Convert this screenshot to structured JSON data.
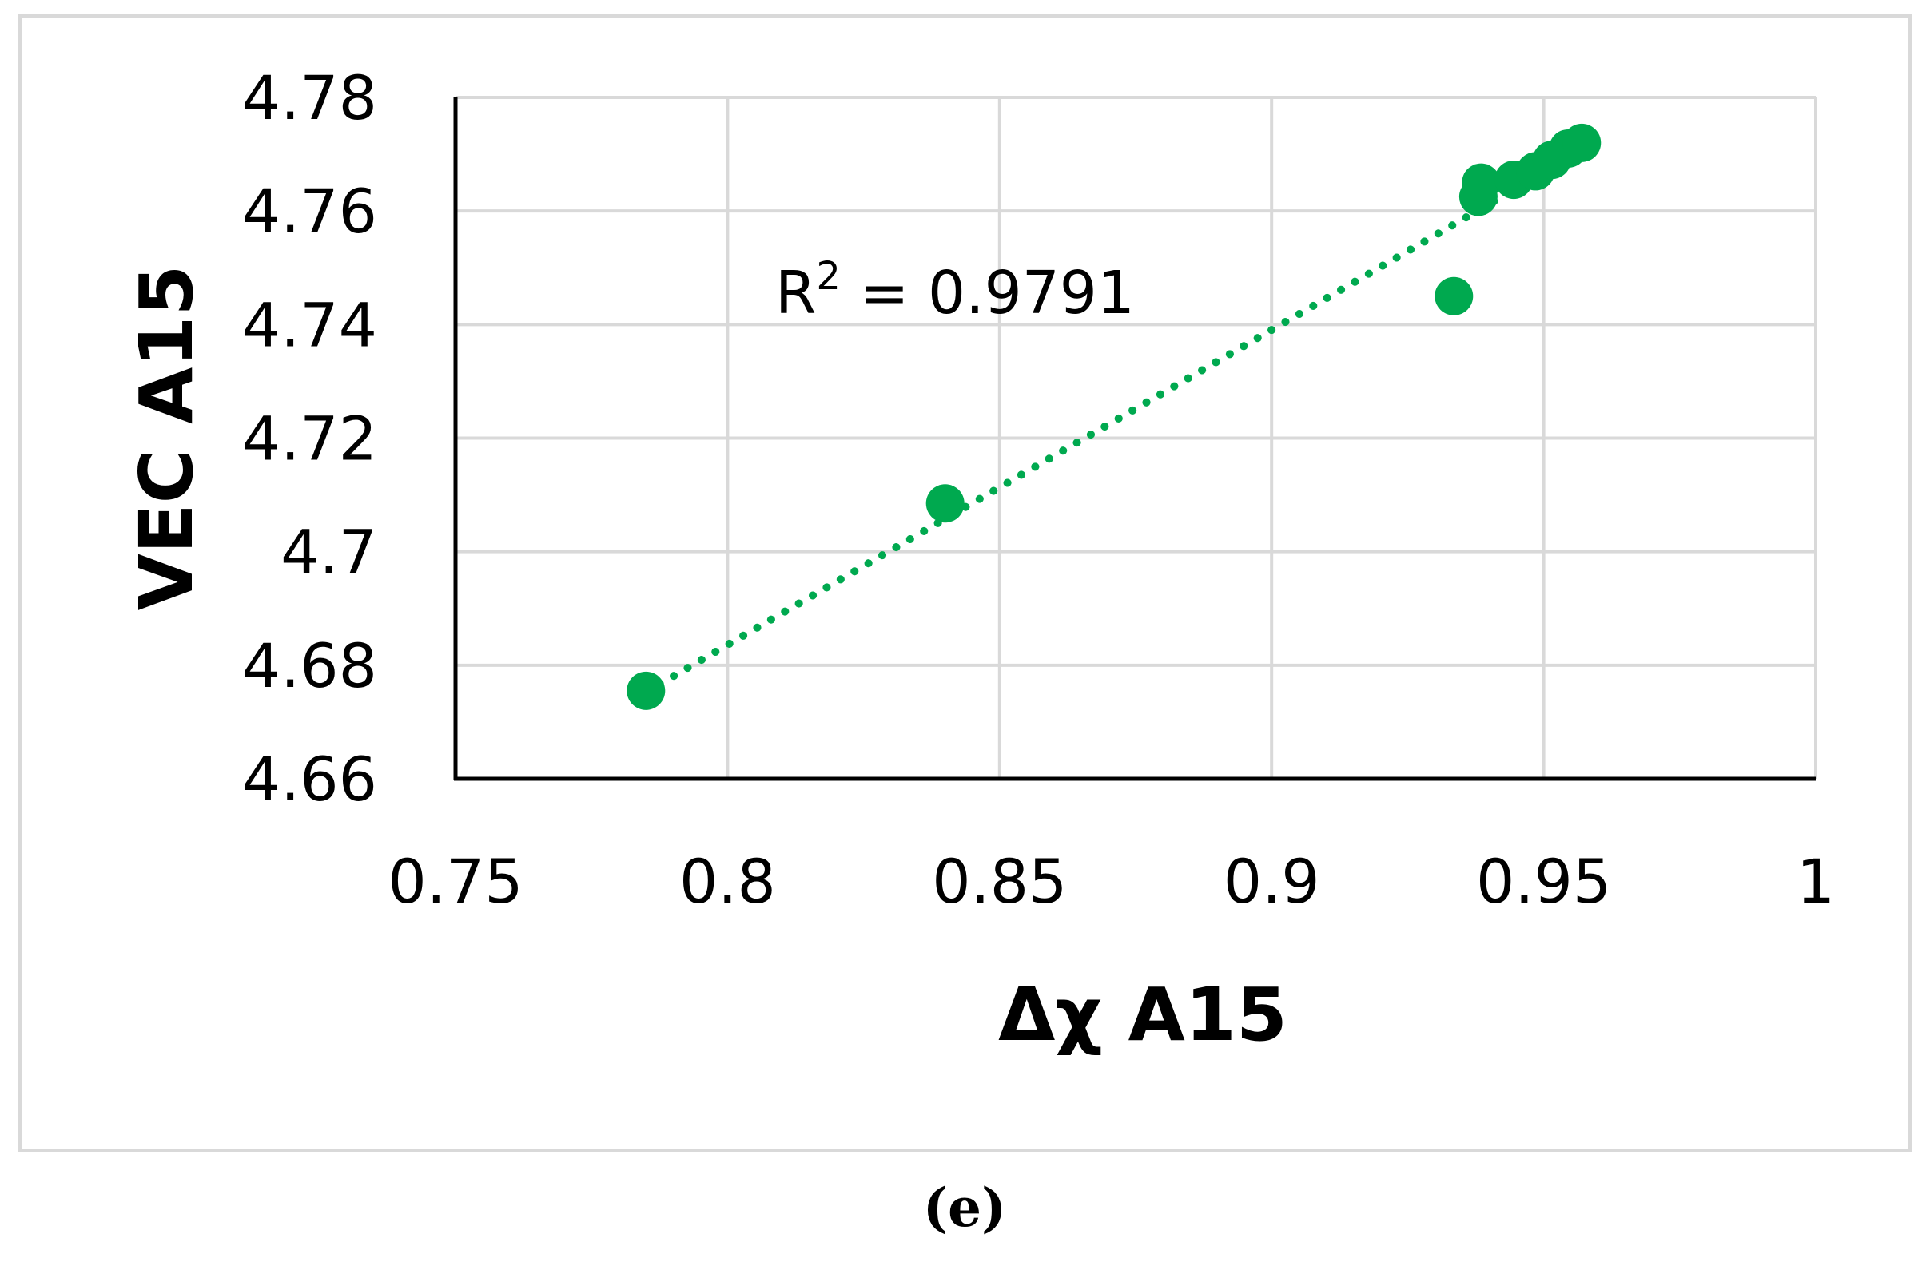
{
  "chart_data": {
    "type": "scatter",
    "xlabel": "Δχ A15",
    "ylabel": "VEC A15",
    "xlim": [
      0.75,
      1.0
    ],
    "ylim": [
      4.66,
      4.78
    ],
    "x_ticks": [
      0.75,
      0.8,
      0.85,
      0.9,
      0.95,
      1.0
    ],
    "x_tick_labels": [
      "0.75",
      "0.8",
      "0.85",
      "0.9",
      "0.95",
      "1"
    ],
    "y_ticks": [
      4.66,
      4.68,
      4.7,
      4.72,
      4.74,
      4.76,
      4.78
    ],
    "y_tick_labels": [
      "4.66",
      "4.68",
      "4.7",
      "4.72",
      "4.74",
      "4.76",
      "4.78"
    ],
    "grid": true,
    "color": "#00a94f",
    "series": [
      {
        "points": [
          {
            "x": 0.785,
            "y": 4.6755
          },
          {
            "x": 0.84,
            "y": 4.7085
          },
          {
            "x": 0.9335,
            "y": 4.745
          },
          {
            "x": 0.938,
            "y": 4.7625
          },
          {
            "x": 0.9385,
            "y": 4.765
          },
          {
            "x": 0.9445,
            "y": 4.7655
          },
          {
            "x": 0.9485,
            "y": 4.767
          },
          {
            "x": 0.9515,
            "y": 4.769
          },
          {
            "x": 0.9545,
            "y": 4.771
          },
          {
            "x": 0.957,
            "y": 4.772
          }
        ]
      }
    ],
    "trendline": {
      "type": "linear",
      "style": "dotted",
      "x_range": [
        0.785,
        0.942
      ],
      "slope": 0.5545,
      "intercept": 4.24
    },
    "annotation": {
      "text_prefix": "R",
      "text_sup": "2",
      "text_suffix": " = 0.9791"
    }
  },
  "caption": "(e)"
}
